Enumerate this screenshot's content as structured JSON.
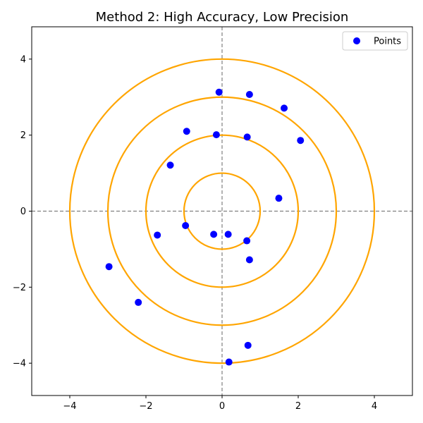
{
  "chart_data": {
    "type": "scatter",
    "title": "Method 2: High Accuracy, Low Precision",
    "xlabel": "",
    "ylabel": "",
    "xlim": [
      -5,
      5
    ],
    "ylim": [
      -4.85,
      4.85
    ],
    "xticks": [
      -4,
      -2,
      0,
      2,
      4
    ],
    "yticks": [
      -4,
      -2,
      0,
      2,
      4
    ],
    "grid": false,
    "legend_position": "top-right",
    "reference_lines": {
      "vertical_x": 0,
      "horizontal_y": 0,
      "style": "dashed",
      "color": "#808080"
    },
    "circles": {
      "center": [
        0,
        0
      ],
      "radii": [
        1,
        2,
        3,
        4
      ],
      "color": "#FFA500"
    },
    "series": [
      {
        "name": "Points",
        "color": "#0000FF",
        "points": [
          {
            "x": -0.08,
            "y": 3.13
          },
          {
            "x": 0.72,
            "y": 3.07
          },
          {
            "x": 1.63,
            "y": 2.71
          },
          {
            "x": -0.93,
            "y": 2.1
          },
          {
            "x": -0.15,
            "y": 2.01
          },
          {
            "x": 0.66,
            "y": 1.95
          },
          {
            "x": 2.06,
            "y": 1.86
          },
          {
            "x": -1.36,
            "y": 1.21
          },
          {
            "x": 1.49,
            "y": 0.34
          },
          {
            "x": -1.7,
            "y": -0.63
          },
          {
            "x": -0.96,
            "y": -0.38
          },
          {
            "x": -0.22,
            "y": -0.61
          },
          {
            "x": 0.16,
            "y": -0.61
          },
          {
            "x": 0.65,
            "y": -0.78
          },
          {
            "x": 0.72,
            "y": -1.28
          },
          {
            "x": -2.97,
            "y": -1.46
          },
          {
            "x": -2.2,
            "y": -2.4
          },
          {
            "x": 0.68,
            "y": -3.53
          },
          {
            "x": 0.18,
            "y": -3.97
          }
        ]
      }
    ]
  }
}
